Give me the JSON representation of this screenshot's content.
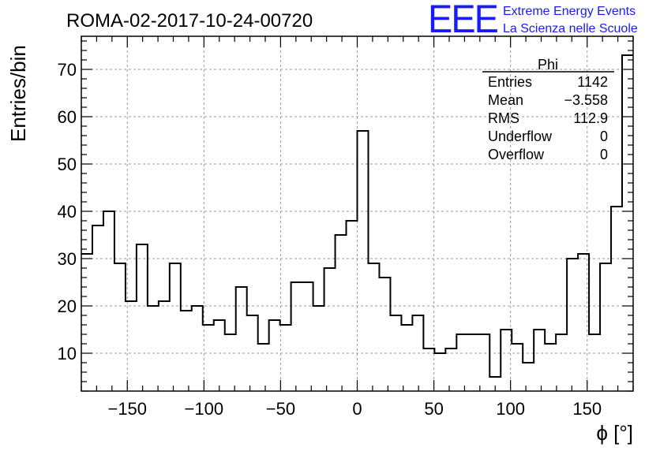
{
  "header": {
    "run_title": "ROMA-02-2017-10-24-00720",
    "logo_mark": "EEE",
    "logo_line1": "Extreme Energy Events",
    "logo_line2": "La Scienza nelle Scuole",
    "brand_color": "#1a1aff"
  },
  "stats_box": {
    "name": "Phi",
    "rows": [
      {
        "label": "Entries",
        "value": "1142"
      },
      {
        "label": "Mean",
        "value": "−3.558"
      },
      {
        "label": "RMS",
        "value": "112.9"
      },
      {
        "label": "Underflow",
        "value": "0"
      },
      {
        "label": "Overflow",
        "value": "0"
      }
    ]
  },
  "chart_data": {
    "type": "histogram",
    "title": "ROMA-02-2017-10-24-00720",
    "xlabel": "ϕ [°]",
    "ylabel": "Entries/bin",
    "xlim": [
      -180,
      180
    ],
    "ylim": [
      2,
      77
    ],
    "bin_width": 7.2,
    "xticks": [
      -150,
      -100,
      -50,
      0,
      50,
      100,
      150
    ],
    "xtick_labels": [
      "−150",
      "−100",
      "−50",
      "0",
      "50",
      "100",
      "150"
    ],
    "yticks": [
      10,
      20,
      30,
      40,
      50,
      60,
      70
    ],
    "ytick_labels": [
      "10",
      "20",
      "30",
      "40",
      "50",
      "60",
      "70"
    ],
    "grid": true,
    "values": [
      31,
      37,
      40,
      29,
      21,
      33,
      20,
      21,
      29,
      19,
      20,
      16,
      17,
      14,
      24,
      18,
      12,
      17,
      16,
      25,
      25,
      20,
      28,
      35,
      38,
      57,
      29,
      26,
      18,
      16,
      18,
      11,
      10,
      11,
      14,
      14,
      14,
      5,
      15,
      12,
      8,
      15,
      12,
      14,
      30,
      31,
      14,
      29,
      41,
      73
    ]
  }
}
